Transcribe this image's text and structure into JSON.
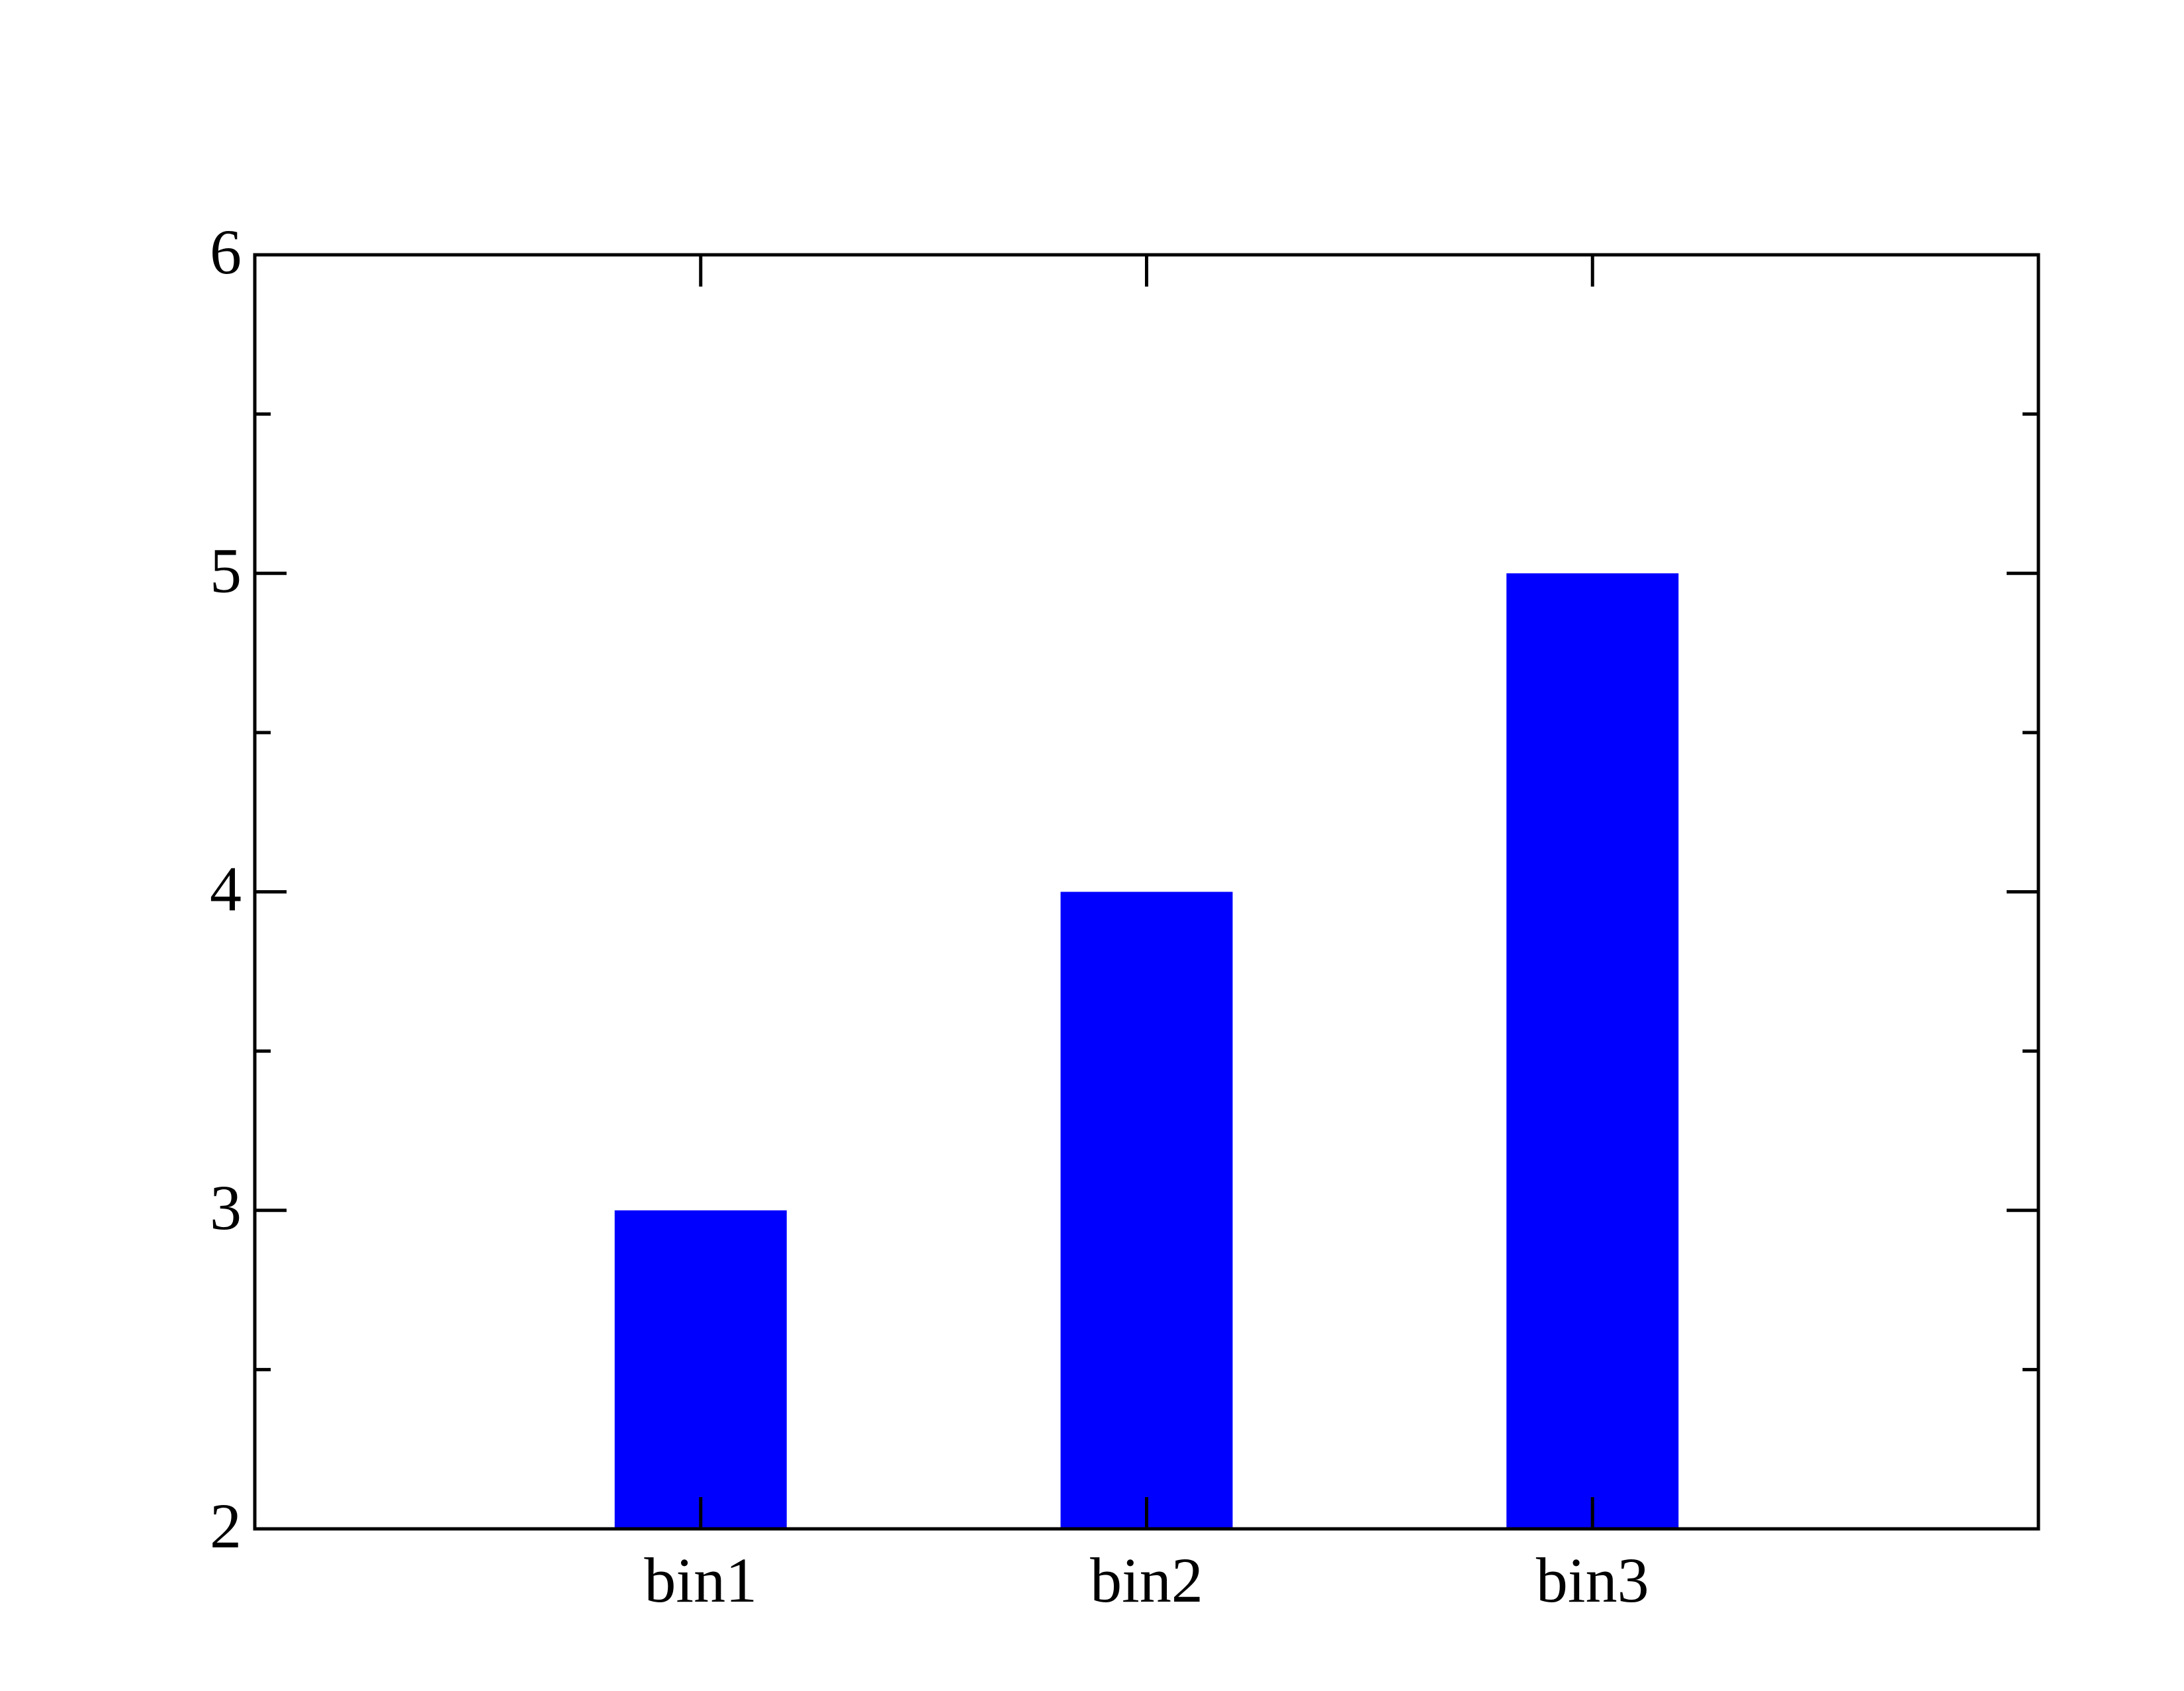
{
  "chart_data": {
    "type": "bar",
    "title": "",
    "xlabel": "",
    "ylabel": "",
    "categories": [
      "bin1",
      "bin2",
      "bin3"
    ],
    "values": [
      3,
      4,
      5
    ],
    "ylim": [
      2,
      6
    ],
    "y_major_ticks": [
      "2",
      "3",
      "4",
      "5",
      "6"
    ],
    "y_minor_step": 0.5,
    "grid": false,
    "legend": "none",
    "bar_color": "#0000ff",
    "axis_color": "#000000"
  }
}
